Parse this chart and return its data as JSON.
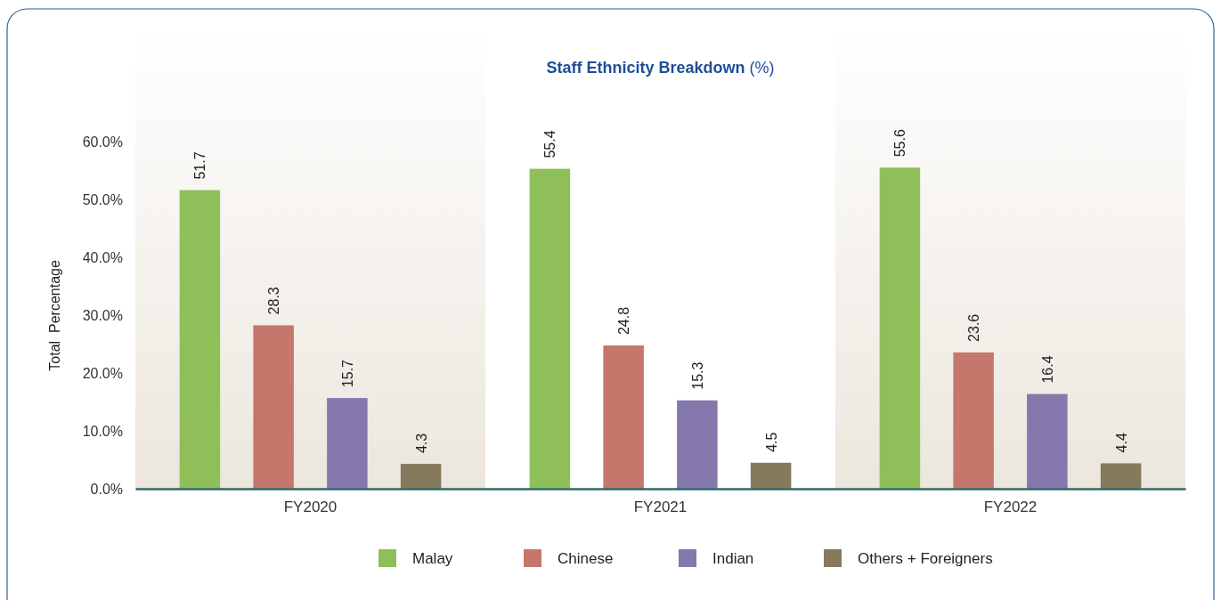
{
  "chart_data": {
    "type": "bar",
    "title": "Staff Ethnicity Breakdown (%)",
    "ylabel": "Total  Percentage",
    "categories": [
      "FY2020",
      "FY2021",
      "FY2022"
    ],
    "series": [
      {
        "name": "Malay",
        "color": "#8fbf58",
        "values": [
          51.7,
          55.4,
          55.6
        ]
      },
      {
        "name": "Chinese",
        "color": "#c4776a",
        "values": [
          28.3,
          24.8,
          23.6
        ]
      },
      {
        "name": "Indian",
        "color": "#8478ad",
        "values": [
          15.7,
          15.3,
          16.4
        ]
      },
      {
        "name": "Others + Foreigners",
        "color": "#857a5c",
        "values": [
          4.3,
          4.5,
          4.4
        ]
      }
    ],
    "ylim": [
      0,
      80
    ],
    "yticks": [
      {
        "value": 0,
        "label": "0.0%"
      },
      {
        "value": 10,
        "label": "10.0%"
      },
      {
        "value": 20,
        "label": "20.0%"
      },
      {
        "value": 30,
        "label": "30.0%"
      },
      {
        "value": 40,
        "label": "40.0%"
      },
      {
        "value": 50,
        "label": "50.0%"
      },
      {
        "value": 60,
        "label": "60.0%"
      }
    ],
    "bands": [
      {
        "axis": "x",
        "from": "FY2020",
        "to": "FY2020",
        "color": "#ece6dd"
      },
      {
        "axis": "x",
        "from": "FY2022",
        "to": "FY2022",
        "color": "#ece6dd"
      }
    ],
    "data_labels": true,
    "grid": false,
    "legend": "bottom"
  }
}
